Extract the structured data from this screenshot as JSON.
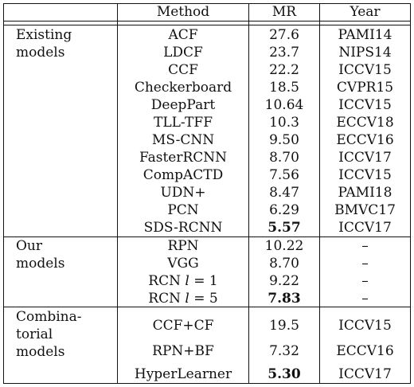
{
  "headers": {
    "group": "",
    "method": "Method",
    "mr": "MR",
    "year": "Year"
  },
  "groups": [
    {
      "label_lines": [
        "Existing",
        "models"
      ],
      "rows": [
        {
          "method": "ACF",
          "mr": "27.6",
          "year": "PAMI14"
        },
        {
          "method": "LDCF",
          "mr": "23.7",
          "year": "NIPS14"
        },
        {
          "method": "CCF",
          "mr": "22.2",
          "year": "ICCV15"
        },
        {
          "method": "Checkerboard",
          "mr": "18.5",
          "year": "CVPR15"
        },
        {
          "method": "DeepPart",
          "mr": "10.64",
          "year": "ICCV15"
        },
        {
          "method": "TLL-TFF",
          "mr": "10.3",
          "year": "ECCV18"
        },
        {
          "method": "MS-CNN",
          "mr": "9.50",
          "year": "ECCV16"
        },
        {
          "method": "FasterRCNN",
          "mr": "8.70",
          "year": "ICCV17"
        },
        {
          "method": "CompACTD",
          "mr": "7.56",
          "year": "ICCV15"
        },
        {
          "method": "UDN+",
          "mr": "8.47",
          "year": "PAMI18"
        },
        {
          "method": "PCN",
          "mr": "6.29",
          "year": "BMVC17"
        },
        {
          "method": "SDS-RCNN",
          "mr": "5.57",
          "mr_bold": true,
          "year": "ICCV17"
        }
      ]
    },
    {
      "label_lines": [
        "Our",
        "models"
      ],
      "rows": [
        {
          "method": "RPN",
          "mr": "10.22",
          "year": "–"
        },
        {
          "method": "VGG",
          "mr": "8.70",
          "year": "–"
        },
        {
          "method_prefix": "RCN ",
          "method_math": "l",
          "method_suffix": " = 1",
          "mr": "9.22",
          "year": "–"
        },
        {
          "method_prefix": "RCN ",
          "method_math": "l",
          "method_suffix": " = 5",
          "mr": "7.83",
          "mr_bold": true,
          "year": "–"
        }
      ]
    },
    {
      "label_lines": [
        "Combina-",
        "torial",
        "models"
      ],
      "rows": [
        {
          "method": "CCF+CF",
          "mr": "19.5",
          "year": "ICCV15"
        },
        {
          "method": "RPN+BF",
          "mr": "7.32",
          "year": "ECCV16"
        },
        {
          "method": "HyperLearner",
          "mr": "5.30",
          "mr_bold": true,
          "year": "ICCV17"
        }
      ]
    }
  ]
}
